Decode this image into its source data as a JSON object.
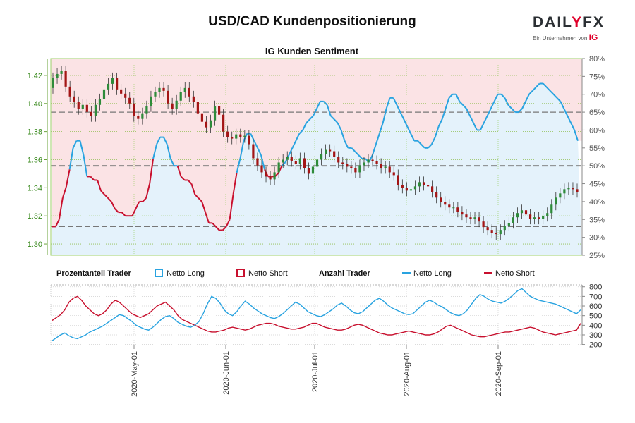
{
  "title": "USD/CAD Kundenpositionierung",
  "logo": {
    "word_a": "DAIL",
    "word_y": "Y",
    "word_b": "FX",
    "sub": "Ein Unternehmen von",
    "ig": "IG"
  },
  "colors": {
    "long_fill": "#e4f2fb",
    "short_fill": "#fbe3e5",
    "long_line": "#29a3e0",
    "short_line": "#c8102e",
    "candle_up": "#2e8b3a",
    "candle_down": "#a31515",
    "grid": "#8fbf4f",
    "pct_axis": "#555555"
  },
  "chart_data": [
    {
      "type": "candlestick+area",
      "title": "IG Kunden Sentiment",
      "left_axis": {
        "ticks": [
          1.3,
          1.32,
          1.34,
          1.36,
          1.38,
          1.4,
          1.42
        ],
        "range": [
          1.292,
          1.432
        ]
      },
      "right_axis": {
        "ticks": [
          "80%",
          "75%",
          "70%",
          "65%",
          "60%",
          "55%",
          "50%",
          "45%",
          "40%",
          "35%",
          "30%",
          "25%"
        ],
        "range": [
          25,
          80
        ]
      },
      "reference_lines": [
        65,
        50,
        33
      ],
      "net_long_pct": [
        33,
        33,
        35,
        41,
        44,
        49,
        55,
        57,
        57,
        53,
        47,
        47,
        46,
        46,
        43,
        42,
        41,
        40,
        38,
        37,
        37,
        36,
        36,
        36,
        38,
        40,
        40,
        41,
        45,
        52,
        56,
        58,
        58,
        56,
        52,
        50,
        50,
        47,
        46,
        46,
        45,
        42,
        41,
        40,
        37,
        34,
        34,
        33,
        32,
        32,
        33,
        35,
        42,
        48,
        52,
        57,
        59,
        59,
        57,
        55,
        53,
        49,
        47,
        47,
        47,
        48,
        50,
        51,
        53,
        55,
        57,
        59,
        60,
        62,
        63,
        64,
        66,
        68,
        68,
        67,
        64,
        63,
        62,
        60,
        57,
        55,
        55,
        54,
        53,
        52,
        52,
        51,
        53,
        56,
        59,
        62,
        66,
        69,
        69,
        67,
        65,
        63,
        61,
        59,
        57,
        57,
        56,
        55,
        55,
        56,
        58,
        61,
        63,
        66,
        69,
        70,
        70,
        68,
        67,
        66,
        64,
        62,
        60,
        60,
        62,
        64,
        66,
        68,
        70,
        70,
        69,
        67,
        66,
        65,
        65,
        66,
        68,
        70,
        71,
        72,
        73,
        73,
        72,
        71,
        70,
        69,
        68,
        66,
        64,
        62,
        60,
        57
      ],
      "candles": {
        "open": [
          1.411,
          1.418,
          1.421,
          1.423,
          1.412,
          1.405,
          1.401,
          1.396,
          1.399,
          1.394,
          1.391,
          1.399,
          1.403,
          1.41,
          1.414,
          1.418,
          1.41,
          1.407,
          1.404,
          1.4,
          1.391,
          1.389,
          1.393,
          1.398,
          1.405,
          1.408,
          1.411,
          1.409,
          1.4,
          1.396,
          1.402,
          1.408,
          1.411,
          1.405,
          1.401,
          1.393,
          1.387,
          1.383,
          1.388,
          1.398,
          1.392,
          1.38,
          1.376,
          1.375,
          1.378,
          1.376,
          1.377,
          1.371,
          1.361,
          1.356,
          1.351,
          1.348,
          1.346,
          1.351,
          1.358,
          1.36,
          1.362,
          1.359,
          1.357,
          1.361,
          1.354,
          1.35,
          1.355,
          1.36,
          1.364,
          1.367,
          1.366,
          1.362,
          1.358,
          1.357,
          1.355,
          1.354,
          1.351,
          1.356,
          1.358,
          1.36,
          1.359,
          1.357,
          1.354,
          1.355,
          1.351,
          1.349,
          1.342,
          1.34,
          1.338,
          1.339,
          1.341,
          1.344,
          1.342,
          1.341,
          1.337,
          1.333,
          1.33,
          1.328,
          1.326,
          1.326,
          1.323,
          1.321,
          1.319,
          1.318,
          1.319,
          1.316,
          1.312,
          1.31,
          1.308,
          1.307,
          1.31,
          1.313,
          1.315,
          1.319,
          1.322,
          1.324,
          1.321,
          1.318,
          1.319,
          1.318,
          1.32,
          1.322,
          1.328,
          1.333,
          1.336,
          1.339,
          1.34,
          1.339
        ],
        "close": [
          1.418,
          1.421,
          1.423,
          1.412,
          1.405,
          1.401,
          1.396,
          1.399,
          1.394,
          1.391,
          1.399,
          1.403,
          1.41,
          1.414,
          1.418,
          1.41,
          1.407,
          1.404,
          1.4,
          1.391,
          1.389,
          1.393,
          1.398,
          1.405,
          1.408,
          1.411,
          1.409,
          1.4,
          1.396,
          1.402,
          1.408,
          1.411,
          1.405,
          1.401,
          1.393,
          1.387,
          1.383,
          1.388,
          1.398,
          1.392,
          1.38,
          1.376,
          1.375,
          1.378,
          1.376,
          1.377,
          1.371,
          1.361,
          1.356,
          1.351,
          1.348,
          1.346,
          1.351,
          1.358,
          1.36,
          1.362,
          1.359,
          1.357,
          1.361,
          1.354,
          1.35,
          1.355,
          1.36,
          1.364,
          1.367,
          1.366,
          1.362,
          1.358,
          1.357,
          1.355,
          1.354,
          1.351,
          1.356,
          1.358,
          1.36,
          1.359,
          1.357,
          1.354,
          1.355,
          1.351,
          1.349,
          1.342,
          1.34,
          1.338,
          1.339,
          1.341,
          1.344,
          1.342,
          1.341,
          1.337,
          1.333,
          1.33,
          1.328,
          1.326,
          1.326,
          1.323,
          1.321,
          1.319,
          1.318,
          1.319,
          1.316,
          1.312,
          1.31,
          1.308,
          1.307,
          1.31,
          1.313,
          1.315,
          1.319,
          1.322,
          1.324,
          1.321,
          1.318,
          1.319,
          1.318,
          1.32,
          1.322,
          1.328,
          1.333,
          1.336,
          1.339,
          1.34,
          1.339,
          1.337
        ]
      }
    },
    {
      "type": "line",
      "legend": {
        "pct_header": "Prozentanteil Trader",
        "count_header": "Anzahl Trader",
        "net_long": "Netto Long",
        "net_short": "Netto Short"
      },
      "y_axis": {
        "ticks": [
          200,
          300,
          400,
          500,
          600,
          700,
          800
        ],
        "range": [
          190,
          820
        ]
      },
      "x_axis": {
        "labels": [
          "2020-May-01",
          "2020-Jun-01",
          "2020-Jul-01",
          "2020-Aug-01",
          "2020-Sep-01"
        ]
      },
      "net_long_count": [
        240,
        270,
        300,
        320,
        290,
        270,
        260,
        280,
        300,
        330,
        350,
        370,
        390,
        420,
        450,
        480,
        510,
        500,
        470,
        440,
        400,
        380,
        360,
        350,
        380,
        420,
        460,
        490,
        500,
        470,
        430,
        410,
        390,
        380,
        400,
        440,
        520,
        620,
        700,
        680,
        630,
        560,
        520,
        500,
        540,
        600,
        650,
        620,
        580,
        550,
        520,
        500,
        480,
        470,
        490,
        520,
        560,
        600,
        640,
        620,
        580,
        540,
        520,
        500,
        490,
        510,
        540,
        570,
        610,
        630,
        600,
        560,
        530,
        520,
        540,
        580,
        620,
        660,
        680,
        650,
        610,
        580,
        560,
        540,
        520,
        510,
        520,
        560,
        600,
        640,
        660,
        640,
        610,
        590,
        560,
        530,
        510,
        500,
        520,
        560,
        620,
        680,
        720,
        700,
        670,
        650,
        640,
        630,
        650,
        680,
        720,
        760,
        780,
        740,
        700,
        680,
        660,
        650,
        640,
        630,
        620,
        600,
        580,
        560,
        540,
        520,
        560
      ],
      "net_short_count": [
        450,
        480,
        510,
        560,
        640,
        680,
        700,
        660,
        600,
        560,
        520,
        500,
        520,
        560,
        620,
        660,
        640,
        600,
        560,
        520,
        500,
        480,
        500,
        520,
        560,
        600,
        620,
        640,
        600,
        560,
        500,
        460,
        440,
        420,
        400,
        380,
        360,
        340,
        330,
        330,
        340,
        350,
        370,
        380,
        370,
        360,
        350,
        360,
        380,
        400,
        410,
        420,
        420,
        410,
        390,
        380,
        370,
        360,
        360,
        370,
        380,
        400,
        420,
        420,
        400,
        380,
        370,
        360,
        350,
        350,
        360,
        380,
        400,
        410,
        400,
        380,
        360,
        340,
        320,
        310,
        300,
        300,
        310,
        320,
        330,
        340,
        330,
        320,
        310,
        300,
        300,
        310,
        330,
        360,
        390,
        400,
        380,
        360,
        340,
        320,
        300,
        290,
        280,
        280,
        290,
        300,
        310,
        320,
        330,
        330,
        340,
        350,
        360,
        370,
        380,
        370,
        350,
        330,
        320,
        310,
        300,
        310,
        320,
        330,
        340,
        350,
        420
      ]
    }
  ]
}
